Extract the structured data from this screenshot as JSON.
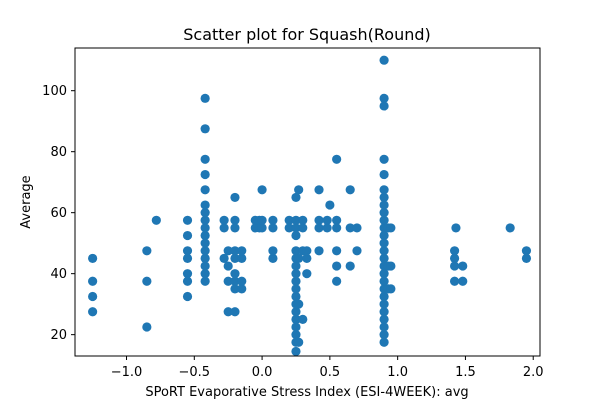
{
  "chart_data": {
    "type": "scatter",
    "title": "Scatter plot for Squash(Round)",
    "xlabel": "SPoRT Evaporative Stress Index (ESI-4WEEK): avg",
    "ylabel": "Average",
    "xlim": [
      -1.38,
      2.05
    ],
    "ylim": [
      13,
      114
    ],
    "xticks": [
      -1.0,
      -0.5,
      0.0,
      0.5,
      1.0,
      1.5,
      2.0
    ],
    "xtick_labels": [
      "−1.0",
      "−0.5",
      "0.0",
      "0.5",
      "1.0",
      "1.5",
      "2.0"
    ],
    "yticks": [
      20,
      40,
      60,
      80,
      100
    ],
    "ytick_labels": [
      "20",
      "40",
      "60",
      "80",
      "100"
    ],
    "grid": false,
    "point_color": "#1f77b4",
    "points": [
      [
        -1.25,
        27.5
      ],
      [
        -1.25,
        32.5
      ],
      [
        -1.25,
        37.5
      ],
      [
        -1.25,
        45
      ],
      [
        -0.85,
        22.5
      ],
      [
        -0.85,
        37.5
      ],
      [
        -0.85,
        47.5
      ],
      [
        -0.78,
        57.5
      ],
      [
        -0.55,
        32.5
      ],
      [
        -0.55,
        37.5
      ],
      [
        -0.55,
        40
      ],
      [
        -0.55,
        45
      ],
      [
        -0.55,
        47.5
      ],
      [
        -0.55,
        52.5
      ],
      [
        -0.55,
        57.5
      ],
      [
        -0.42,
        37.5
      ],
      [
        -0.42,
        40
      ],
      [
        -0.42,
        42.5
      ],
      [
        -0.42,
        45
      ],
      [
        -0.42,
        47.5
      ],
      [
        -0.42,
        50
      ],
      [
        -0.42,
        52.5
      ],
      [
        -0.42,
        55
      ],
      [
        -0.42,
        57.5
      ],
      [
        -0.42,
        60
      ],
      [
        -0.42,
        62.5
      ],
      [
        -0.42,
        67.5
      ],
      [
        -0.42,
        72.5
      ],
      [
        -0.42,
        77.5
      ],
      [
        -0.42,
        87.5
      ],
      [
        -0.42,
        97.5
      ],
      [
        -0.28,
        45
      ],
      [
        -0.28,
        55
      ],
      [
        -0.28,
        57.5
      ],
      [
        -0.25,
        27.5
      ],
      [
        -0.25,
        37.5
      ],
      [
        -0.25,
        42.5
      ],
      [
        -0.25,
        47.5
      ],
      [
        -0.2,
        27.5
      ],
      [
        -0.2,
        35
      ],
      [
        -0.2,
        37.5
      ],
      [
        -0.2,
        40
      ],
      [
        -0.2,
        45
      ],
      [
        -0.2,
        47.5
      ],
      [
        -0.2,
        55
      ],
      [
        -0.2,
        57.5
      ],
      [
        -0.2,
        65
      ],
      [
        -0.15,
        35
      ],
      [
        -0.15,
        37.5
      ],
      [
        -0.15,
        45
      ],
      [
        -0.15,
        47.5
      ],
      [
        -0.05,
        55
      ],
      [
        -0.05,
        57.5
      ],
      [
        -0.02,
        55
      ],
      [
        -0.02,
        57.5
      ],
      [
        0.0,
        55
      ],
      [
        0.0,
        57.5
      ],
      [
        0.0,
        67.5
      ],
      [
        0.08,
        45
      ],
      [
        0.08,
        47.5
      ],
      [
        0.08,
        55
      ],
      [
        0.08,
        57.5
      ],
      [
        0.2,
        55
      ],
      [
        0.2,
        57.5
      ],
      [
        0.25,
        14.5
      ],
      [
        0.25,
        17.5
      ],
      [
        0.25,
        20
      ],
      [
        0.25,
        22.5
      ],
      [
        0.25,
        25
      ],
      [
        0.25,
        27.5
      ],
      [
        0.25,
        30
      ],
      [
        0.25,
        32.5
      ],
      [
        0.25,
        35
      ],
      [
        0.25,
        37.5
      ],
      [
        0.25,
        40
      ],
      [
        0.25,
        42.5
      ],
      [
        0.25,
        45
      ],
      [
        0.25,
        47.5
      ],
      [
        0.25,
        52.5
      ],
      [
        0.25,
        55
      ],
      [
        0.25,
        57.5
      ],
      [
        0.25,
        65
      ],
      [
        0.27,
        17.5
      ],
      [
        0.27,
        30
      ],
      [
        0.27,
        45
      ],
      [
        0.27,
        67.5
      ],
      [
        0.3,
        25
      ],
      [
        0.3,
        47.5
      ],
      [
        0.3,
        55
      ],
      [
        0.3,
        57.5
      ],
      [
        0.33,
        40
      ],
      [
        0.33,
        45
      ],
      [
        0.33,
        47.5
      ],
      [
        0.42,
        47.5
      ],
      [
        0.42,
        55
      ],
      [
        0.42,
        57.5
      ],
      [
        0.42,
        67.5
      ],
      [
        0.48,
        55
      ],
      [
        0.48,
        57.5
      ],
      [
        0.5,
        62.5
      ],
      [
        0.55,
        37.5
      ],
      [
        0.55,
        42.5
      ],
      [
        0.55,
        47.5
      ],
      [
        0.55,
        55
      ],
      [
        0.55,
        57.5
      ],
      [
        0.55,
        77.5
      ],
      [
        0.65,
        42.5
      ],
      [
        0.65,
        55
      ],
      [
        0.65,
        67.5
      ],
      [
        0.7,
        47.5
      ],
      [
        0.7,
        55
      ],
      [
        0.9,
        17.5
      ],
      [
        0.9,
        20
      ],
      [
        0.9,
        22.5
      ],
      [
        0.9,
        25
      ],
      [
        0.9,
        27.5
      ],
      [
        0.9,
        30
      ],
      [
        0.9,
        32.5
      ],
      [
        0.9,
        35
      ],
      [
        0.9,
        37.5
      ],
      [
        0.9,
        40
      ],
      [
        0.9,
        42.5
      ],
      [
        0.9,
        45
      ],
      [
        0.9,
        47.5
      ],
      [
        0.9,
        50
      ],
      [
        0.9,
        52.5
      ],
      [
        0.9,
        55
      ],
      [
        0.9,
        57.5
      ],
      [
        0.9,
        60
      ],
      [
        0.9,
        62.5
      ],
      [
        0.9,
        65
      ],
      [
        0.9,
        67.5
      ],
      [
        0.9,
        72.5
      ],
      [
        0.9,
        77.5
      ],
      [
        0.9,
        95
      ],
      [
        0.9,
        97.5
      ],
      [
        0.9,
        110
      ],
      [
        0.93,
        35
      ],
      [
        0.93,
        42.5
      ],
      [
        0.93,
        55
      ],
      [
        0.95,
        35
      ],
      [
        0.95,
        42.5
      ],
      [
        0.95,
        55
      ],
      [
        1.42,
        37.5
      ],
      [
        1.42,
        42.5
      ],
      [
        1.42,
        45
      ],
      [
        1.42,
        47.5
      ],
      [
        1.43,
        55
      ],
      [
        1.48,
        37.5
      ],
      [
        1.48,
        42.5
      ],
      [
        1.83,
        55
      ],
      [
        1.95,
        45
      ],
      [
        1.95,
        47.5
      ]
    ]
  }
}
